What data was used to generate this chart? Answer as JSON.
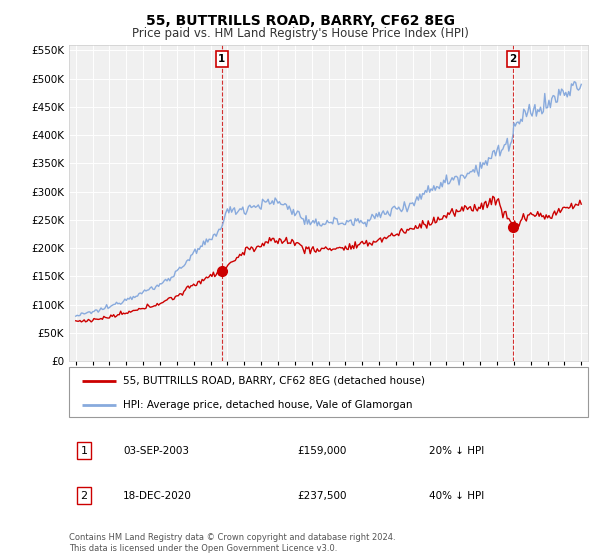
{
  "title": "55, BUTTRILLS ROAD, BARRY, CF62 8EG",
  "subtitle": "Price paid vs. HM Land Registry's House Price Index (HPI)",
  "ylim": [
    0,
    560000
  ],
  "yticks": [
    0,
    50000,
    100000,
    150000,
    200000,
    250000,
    300000,
    350000,
    400000,
    450000,
    500000,
    550000
  ],
  "xlim_start": 1994.6,
  "xlim_end": 2025.4,
  "legend_line1": "55, BUTTRILLS ROAD, BARRY, CF62 8EG (detached house)",
  "legend_line2": "HPI: Average price, detached house, Vale of Glamorgan",
  "marker1_label": "1",
  "marker1_date": "03-SEP-2003",
  "marker1_price": "£159,000",
  "marker1_pct": "20% ↓ HPI",
  "marker2_label": "2",
  "marker2_date": "18-DEC-2020",
  "marker2_price": "£237,500",
  "marker2_pct": "40% ↓ HPI",
  "footnote": "Contains HM Land Registry data © Crown copyright and database right 2024.\nThis data is licensed under the Open Government Licence v3.0.",
  "red_color": "#cc0000",
  "blue_color": "#88aadd",
  "plot_bg": "#f0f0f0",
  "marker1_x": 2003.67,
  "marker1_y": 159000,
  "marker2_x": 2020.96,
  "marker2_y": 237500,
  "vline1_x": 2003.67,
  "vline2_x": 2020.96
}
